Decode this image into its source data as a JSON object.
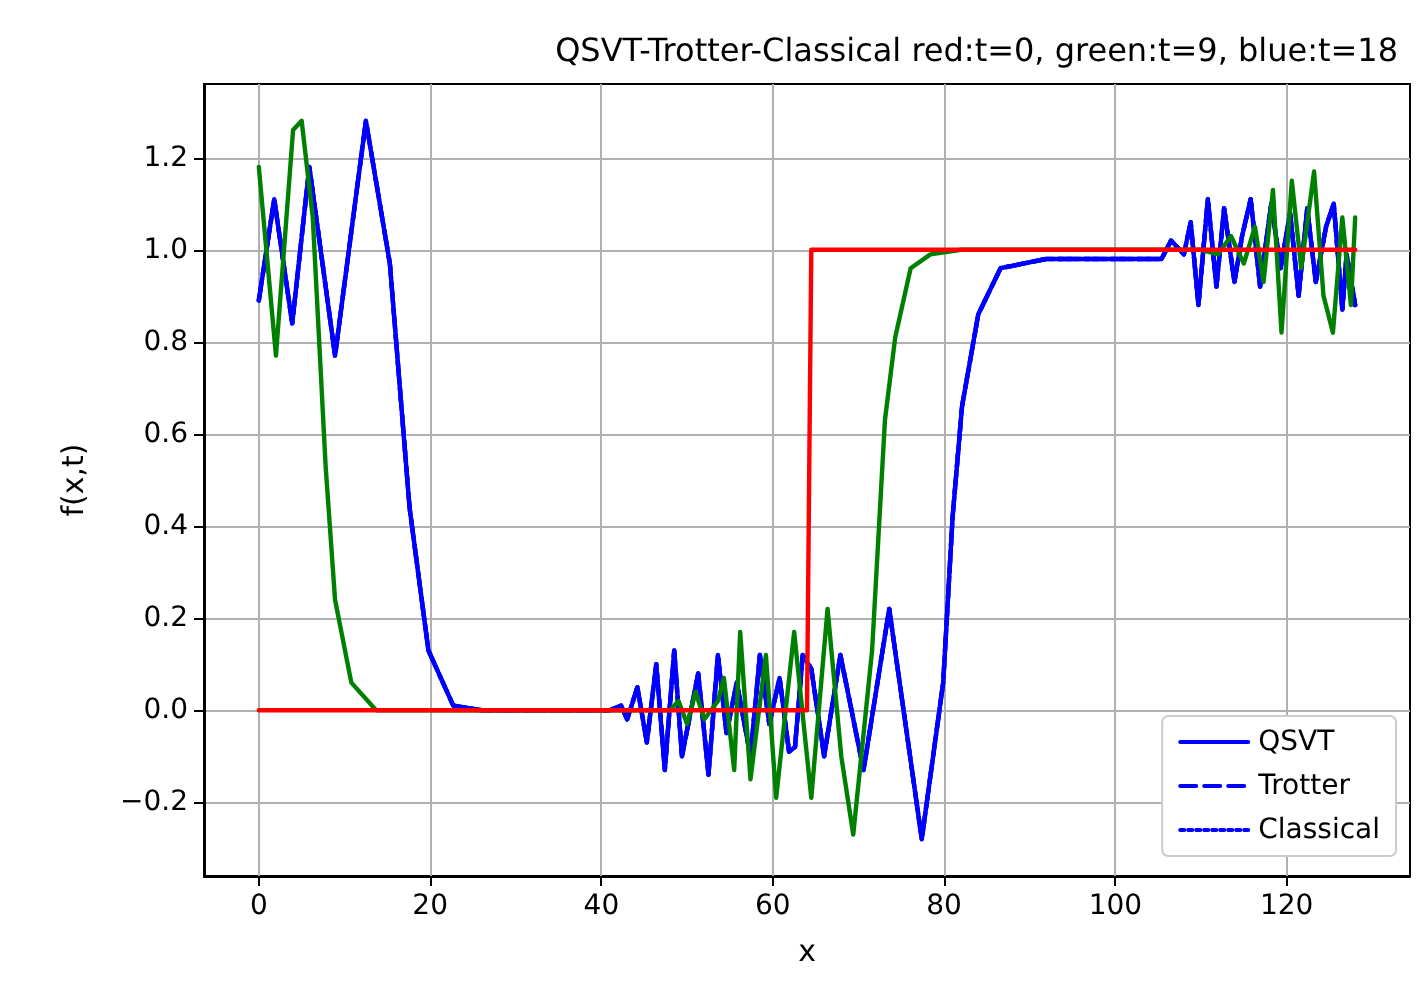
{
  "chart_data": {
    "type": "line",
    "title": "QSVT-Trotter-Classical red:t=0, green:t=9, blue:t=18",
    "xlabel": "x",
    "ylabel": "f(x,t)",
    "xlim": [
      -6.4,
      134.4
    ],
    "xticks": [
      0,
      20,
      40,
      60,
      80,
      100,
      120
    ],
    "ylim": [
      -0.36,
      1.36
    ],
    "yticks": [
      {
        "value": -0.2,
        "label": "−0.2"
      },
      {
        "value": 0,
        "label": "0.0"
      },
      {
        "value": 0.2,
        "label": "0.2"
      },
      {
        "value": 0.4,
        "label": "0.4"
      },
      {
        "value": 0.6,
        "label": "0.6"
      },
      {
        "value": 0.8,
        "label": "0.8"
      },
      {
        "value": 1,
        "label": "1.0"
      },
      {
        "value": 1.2,
        "label": "1.2"
      }
    ],
    "grid": true,
    "legend": "bottom right",
    "marker": "none",
    "series": [
      {
        "name": "QSVT",
        "color": "#0000ff",
        "line_style": "solid",
        "x": [
          0,
          1.8,
          3.9,
          5.9,
          8.9,
          12.5,
          15.3,
          17.6,
          19.8,
          22.7,
          26,
          40,
          41,
          42.3,
          43,
          44.2,
          45.3,
          46.4,
          47.4,
          48.5,
          49.4,
          51.3,
          52.5,
          53.6,
          54.6,
          55.8,
          57.4,
          58.5,
          59.6,
          60.8,
          61.9,
          62.6,
          63.5,
          64.5,
          66,
          67.9,
          70.6,
          73.6,
          77.4,
          79.9,
          81,
          82.1,
          84,
          86.6,
          91.9,
          100,
          105.4,
          106.5,
          108,
          108.8,
          109.7,
          110.8,
          111.8,
          112.7,
          113.9,
          114.8,
          115.8,
          116.9,
          118.2,
          119.3,
          120.4,
          121.4,
          122.4,
          123.4,
          124.6,
          125.5,
          126.5,
          127,
          128
        ],
        "values": [
          0.89,
          1.11,
          0.84,
          1.18,
          0.77,
          1.28,
          0.97,
          0.44,
          0.13,
          0.01,
          0,
          0,
          0,
          0.01,
          -0.02,
          0.05,
          -0.07,
          0.1,
          -0.13,
          0.13,
          -0.1,
          0.08,
          -0.14,
          0.12,
          -0.05,
          0.06,
          -0.1,
          0.12,
          -0.03,
          0.07,
          -0.09,
          -0.08,
          0.12,
          0.09,
          -0.1,
          0.12,
          -0.13,
          0.22,
          -0.28,
          0.06,
          0.42,
          0.66,
          0.86,
          0.96,
          0.98,
          0.98,
          0.98,
          1.02,
          0.99,
          1.06,
          0.88,
          1.11,
          0.92,
          1.09,
          0.93,
          1.03,
          1.11,
          0.92,
          1.1,
          0.96,
          1.08,
          0.9,
          1.09,
          0.93,
          1.05,
          1.1,
          0.87,
          0.99,
          0.88
        ]
      },
      {
        "name": "Trotter",
        "color": "#0000ff",
        "line_style": "dashed",
        "x": [
          0,
          1.8,
          3.9,
          5.9,
          8.9,
          12.5,
          15.3,
          17.6,
          19.8,
          22.7,
          26,
          40,
          41,
          42.3,
          43,
          44.2,
          45.3,
          46.4,
          47.4,
          48.5,
          49.4,
          51.3,
          52.5,
          53.6,
          54.6,
          55.8,
          57.4,
          58.5,
          59.6,
          60.8,
          61.9,
          62.6,
          63.5,
          64.5,
          66,
          67.9,
          70.6,
          73.6,
          77.4,
          79.9,
          81,
          82.1,
          84,
          86.6,
          91.9,
          100,
          105.4,
          106.5,
          108,
          108.8,
          109.7,
          110.8,
          111.8,
          112.7,
          113.9,
          114.8,
          115.8,
          116.9,
          118.2,
          119.3,
          120.4,
          121.4,
          122.4,
          123.4,
          124.6,
          125.5,
          126.5,
          127,
          128
        ],
        "values": [
          0.89,
          1.11,
          0.84,
          1.18,
          0.77,
          1.28,
          0.97,
          0.44,
          0.13,
          0.01,
          0,
          0,
          0,
          0.01,
          -0.02,
          0.05,
          -0.07,
          0.1,
          -0.13,
          0.13,
          -0.1,
          0.08,
          -0.14,
          0.12,
          -0.05,
          0.06,
          -0.1,
          0.12,
          -0.03,
          0.07,
          -0.09,
          -0.08,
          0.12,
          0.09,
          -0.1,
          0.12,
          -0.13,
          0.22,
          -0.28,
          0.06,
          0.42,
          0.66,
          0.86,
          0.96,
          0.98,
          0.98,
          0.98,
          1.02,
          0.99,
          1.06,
          0.88,
          1.11,
          0.92,
          1.09,
          0.93,
          1.03,
          1.11,
          0.92,
          1.1,
          0.96,
          1.08,
          0.9,
          1.09,
          0.93,
          1.05,
          1.1,
          0.87,
          0.99,
          0.88
        ]
      },
      {
        "name": "Classical",
        "color": "#0000ff",
        "line_style": "dotted",
        "x": [
          0,
          1.8,
          3.9,
          5.9,
          8.9,
          12.5,
          15.3,
          17.6,
          19.8,
          22.7,
          26,
          40,
          41,
          42.3,
          43,
          44.2,
          45.3,
          46.4,
          47.4,
          48.5,
          49.4,
          51.3,
          52.5,
          53.6,
          54.6,
          55.8,
          57.4,
          58.5,
          59.6,
          60.8,
          61.9,
          62.6,
          63.5,
          64.5,
          66,
          67.9,
          70.6,
          73.6,
          77.4,
          79.9,
          81,
          82.1,
          84,
          86.6,
          91.9,
          100,
          105.4,
          106.5,
          108,
          108.8,
          109.7,
          110.8,
          111.8,
          112.7,
          113.9,
          114.8,
          115.8,
          116.9,
          118.2,
          119.3,
          120.4,
          121.4,
          122.4,
          123.4,
          124.6,
          125.5,
          126.5,
          127,
          128
        ],
        "values": [
          0.89,
          1.11,
          0.84,
          1.18,
          0.77,
          1.28,
          0.97,
          0.44,
          0.13,
          0.01,
          0,
          0,
          0,
          0.01,
          -0.02,
          0.05,
          -0.07,
          0.1,
          -0.13,
          0.13,
          -0.1,
          0.08,
          -0.14,
          0.12,
          -0.05,
          0.06,
          -0.1,
          0.12,
          -0.03,
          0.07,
          -0.09,
          -0.08,
          0.12,
          0.09,
          -0.1,
          0.12,
          -0.13,
          0.22,
          -0.28,
          0.06,
          0.42,
          0.66,
          0.86,
          0.96,
          0.98,
          0.98,
          0.98,
          1.02,
          0.99,
          1.06,
          0.88,
          1.11,
          0.92,
          1.09,
          0.93,
          1.03,
          1.11,
          0.92,
          1.1,
          0.96,
          1.08,
          0.9,
          1.09,
          0.93,
          1.05,
          1.1,
          0.87,
          0.99,
          0.88
        ]
      },
      {
        "color": "#008000",
        "line_style": "solid",
        "x": [
          0,
          2,
          4,
          5,
          6.3,
          7.8,
          8.9,
          10.8,
          13.7,
          20,
          40,
          48,
          49,
          50,
          51,
          52,
          53.6,
          54.3,
          55.5,
          56.2,
          57.4,
          59.2,
          60.4,
          62.5,
          64.5,
          66.4,
          68,
          69.4,
          71.6,
          73.1,
          74.3,
          76.1,
          78.4,
          82,
          110,
          112,
          113.5,
          115,
          116.3,
          117.3,
          118.4,
          119.4,
          120.6,
          121.7,
          123.2,
          124.3,
          125.4,
          126.5,
          127.5,
          128
        ],
        "values": [
          1.18,
          0.77,
          1.26,
          1.28,
          1.07,
          0.53,
          0.24,
          0.06,
          0,
          0,
          0,
          0,
          0.02,
          -0.03,
          0.04,
          -0.02,
          0.02,
          0.07,
          -0.13,
          0.17,
          -0.15,
          0.12,
          -0.19,
          0.17,
          -0.19,
          0.22,
          -0.1,
          -0.27,
          0.13,
          0.63,
          0.81,
          0.96,
          0.99,
          1,
          1,
          0.99,
          1.03,
          0.97,
          1.05,
          0.93,
          1.13,
          0.82,
          1.15,
          0.96,
          1.17,
          0.9,
          0.82,
          1.07,
          0.88,
          1.07
        ]
      },
      {
        "color": "#ff0000",
        "line_style": "solid",
        "x": [
          0,
          64,
          64.5,
          128
        ],
        "values": [
          0,
          0,
          1,
          1
        ]
      }
    ]
  }
}
